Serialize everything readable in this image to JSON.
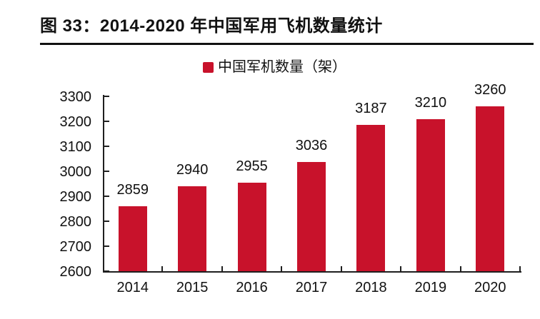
{
  "chart_data": {
    "type": "bar",
    "title": "图 33：2014-2020 年中国军用飞机数量统计",
    "categories": [
      "2014",
      "2015",
      "2016",
      "2017",
      "2018",
      "2019",
      "2020"
    ],
    "series": [
      {
        "name": "中国军机数量（架）",
        "values": [
          2859,
          2940,
          2955,
          3036,
          3187,
          3210,
          3260
        ]
      }
    ],
    "data_labels": [
      2859,
      2940,
      2955,
      3036,
      3187,
      3210,
      3260
    ],
    "yticks": [
      2600,
      2700,
      2800,
      2900,
      3000,
      3100,
      3200,
      3300
    ],
    "ylim": [
      2600,
      3300
    ],
    "ytick_step": 100,
    "xlabel": "",
    "ylabel": "",
    "grid": false,
    "legend_position": "top",
    "bar_color": "#C8122B",
    "axis_color": "#1F1F1F",
    "text_color": "#111111"
  }
}
